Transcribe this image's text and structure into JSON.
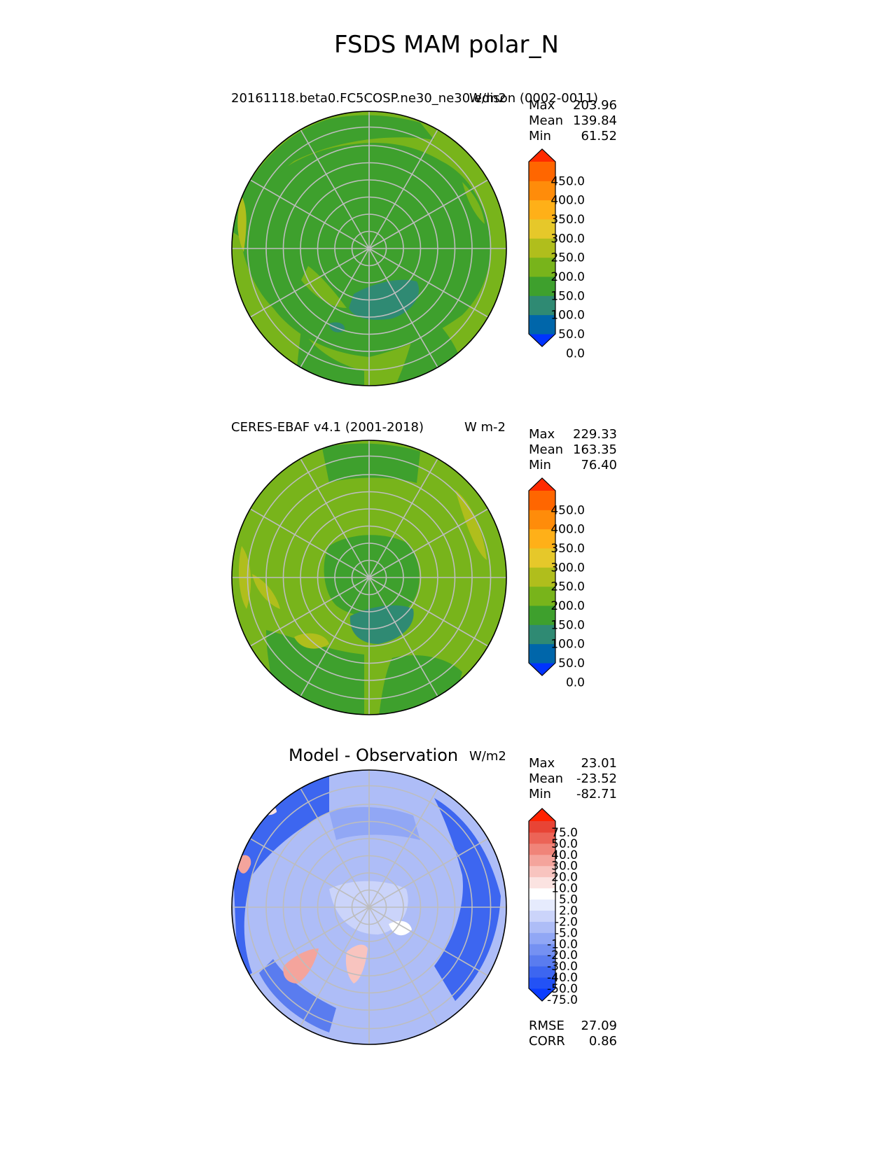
{
  "title": "FSDS MAM polar_N",
  "panels": [
    {
      "id": "model",
      "left_title": "20161118.beta0.FC5COSP.ne30_ne30.edison (0002-0011)",
      "units": "W/m2",
      "stats": [
        {
          "label": "Max",
          "value": "203.96"
        },
        {
          "label": "Mean",
          "value": "139.84"
        },
        {
          "label": "Min",
          "value": "61.52"
        }
      ],
      "colorbar": {
        "labels": [
          "450.0",
          "400.0",
          "350.0",
          "300.0",
          "250.0",
          "200.0",
          "150.0",
          "100.0",
          "50.0",
          "0.0"
        ],
        "colors": [
          "#0033ff",
          "#0066aa",
          "#2f8a73",
          "#3ea02d",
          "#78b41b",
          "#b0be1c",
          "#e6c82a",
          "#ffb018",
          "#ff8c0a",
          "#ff6600",
          "#ff2a00"
        ]
      }
    },
    {
      "id": "obs",
      "left_title": "CERES-EBAF v4.1 (2001-2018)",
      "units": "W m-2",
      "stats": [
        {
          "label": "Max",
          "value": "229.33"
        },
        {
          "label": "Mean",
          "value": "163.35"
        },
        {
          "label": "Min",
          "value": "76.40"
        }
      ],
      "colorbar": {
        "labels": [
          "450.0",
          "400.0",
          "350.0",
          "300.0",
          "250.0",
          "200.0",
          "150.0",
          "100.0",
          "50.0",
          "0.0"
        ],
        "colors": [
          "#0033ff",
          "#0066aa",
          "#2f8a73",
          "#3ea02d",
          "#78b41b",
          "#b0be1c",
          "#e6c82a",
          "#ffb018",
          "#ff8c0a",
          "#ff6600",
          "#ff2a00"
        ]
      }
    },
    {
      "id": "diff",
      "center_title": "Model - Observation",
      "units": "W/m2",
      "stats": [
        {
          "label": "Max",
          "value": "23.01"
        },
        {
          "label": "Mean",
          "value": "-23.52"
        },
        {
          "label": "Min",
          "value": "-82.71"
        }
      ],
      "extra_stats": [
        {
          "label": "RMSE",
          "value": "27.09"
        },
        {
          "label": "CORR",
          "value": "0.86"
        }
      ],
      "colorbar": {
        "labels": [
          "75.0",
          "50.0",
          "40.0",
          "30.0",
          "20.0",
          "10.0",
          "5.0",
          "2.0",
          "-2.0",
          "-5.0",
          "-10.0",
          "-20.0",
          "-30.0",
          "-40.0",
          "-50.0",
          "-75.0"
        ],
        "colors": [
          "#0a3cff",
          "#2352f5",
          "#3d66f0",
          "#5a7cef",
          "#7591f2",
          "#91a7f5",
          "#aebdf7",
          "#cbd4fa",
          "#e6ebfd",
          "#ffffff",
          "#fbe3e1",
          "#f8c4bf",
          "#f4a49c",
          "#f08479",
          "#ec6457",
          "#e84435",
          "#ff2200"
        ]
      }
    }
  ]
}
